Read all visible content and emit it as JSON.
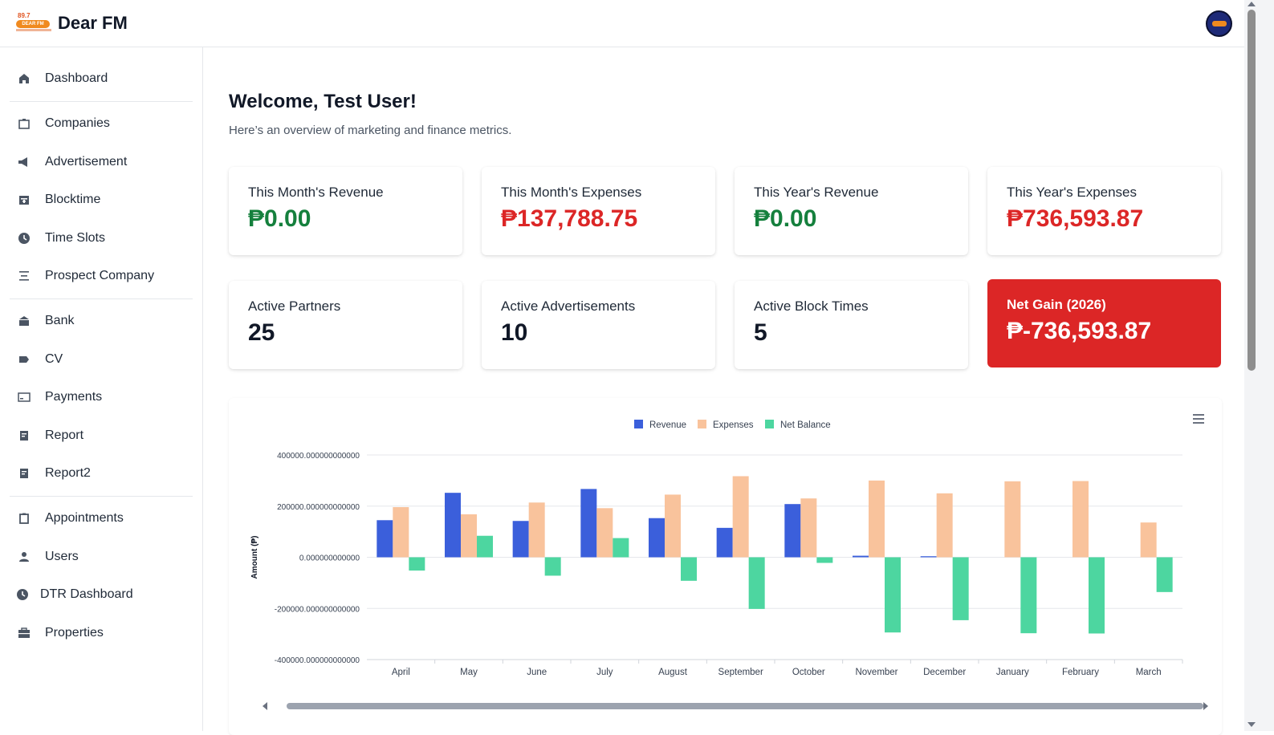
{
  "app": {
    "brand_name": "Dear FM",
    "logo_freq": "89.7",
    "logo_text": "DEAR FM"
  },
  "sidebar": {
    "items": [
      {
        "label": "Dashboard",
        "icon": "home-icon"
      },
      {
        "label": "Companies",
        "icon": "building-icon"
      },
      {
        "label": "Advertisement",
        "icon": "megaphone-icon"
      },
      {
        "label": "Blocktime",
        "icon": "calendar-icon"
      },
      {
        "label": "Time Slots",
        "icon": "clock-icon"
      },
      {
        "label": "Prospect Company",
        "icon": "list-icon"
      },
      {
        "label": "Bank",
        "icon": "bank-icon"
      },
      {
        "label": "CV",
        "icon": "tag-icon"
      },
      {
        "label": "Payments",
        "icon": "card-icon"
      },
      {
        "label": "Report",
        "icon": "document-icon"
      },
      {
        "label": "Report2",
        "icon": "document-icon"
      },
      {
        "label": "Appointments",
        "icon": "clipboard-icon"
      },
      {
        "label": "Users",
        "icon": "user-icon"
      },
      {
        "label": "DTR Dashboard",
        "icon": "clock-icon"
      },
      {
        "label": "Properties",
        "icon": "briefcase-icon"
      }
    ]
  },
  "main": {
    "welcome": "Welcome, Test User!",
    "subtitle": "Here’s an overview of marketing and finance metrics.",
    "cards": [
      {
        "title": "This Month's Revenue",
        "value": "₱0.00"
      },
      {
        "title": "This Month's Expenses",
        "value": "₱137,788.75"
      },
      {
        "title": "This Year's Revenue",
        "value": "₱0.00"
      },
      {
        "title": "This Year's Expenses",
        "value": "₱736,593.87"
      },
      {
        "title": "Active Partners",
        "value": "25"
      },
      {
        "title": "Active Advertisements",
        "value": "10"
      },
      {
        "title": "Active Block Times",
        "value": "5"
      },
      {
        "title": "Net Gain (2026)",
        "value": "₱-736,593.87"
      }
    ]
  },
  "colors": {
    "revenue": "#3b5fdb",
    "expenses": "#f9c39c",
    "net": "#4dd6a0",
    "net_gain_card": "#dc2626"
  },
  "chart_data": {
    "type": "bar",
    "categories": [
      "April",
      "May",
      "June",
      "July",
      "August",
      "September",
      "October",
      "November",
      "December",
      "January",
      "February",
      "March"
    ],
    "series": [
      {
        "name": "Revenue",
        "values": [
          145000,
          252000,
          142000,
          267000,
          153000,
          115000,
          208000,
          6000,
          4000,
          0,
          0,
          0
        ]
      },
      {
        "name": "Expenses",
        "values": [
          196000,
          168000,
          214000,
          192000,
          245000,
          317000,
          230000,
          300000,
          250000,
          297000,
          298000,
          136000
        ]
      },
      {
        "name": "Net Balance",
        "values": [
          -52000,
          84000,
          -72000,
          75000,
          -92000,
          -202000,
          -22000,
          -294000,
          -246000,
          -297000,
          -298000,
          -136000
        ]
      }
    ],
    "ylabel": "Amount (₱)",
    "ylim": [
      -400000,
      400000
    ],
    "yticks": [
      "400000.000000000000",
      "200000.000000000000",
      "0.000000000000",
      "-200000.000000000000",
      "-400000.000000000000"
    ],
    "legend_position": "top-center",
    "grid": true
  }
}
